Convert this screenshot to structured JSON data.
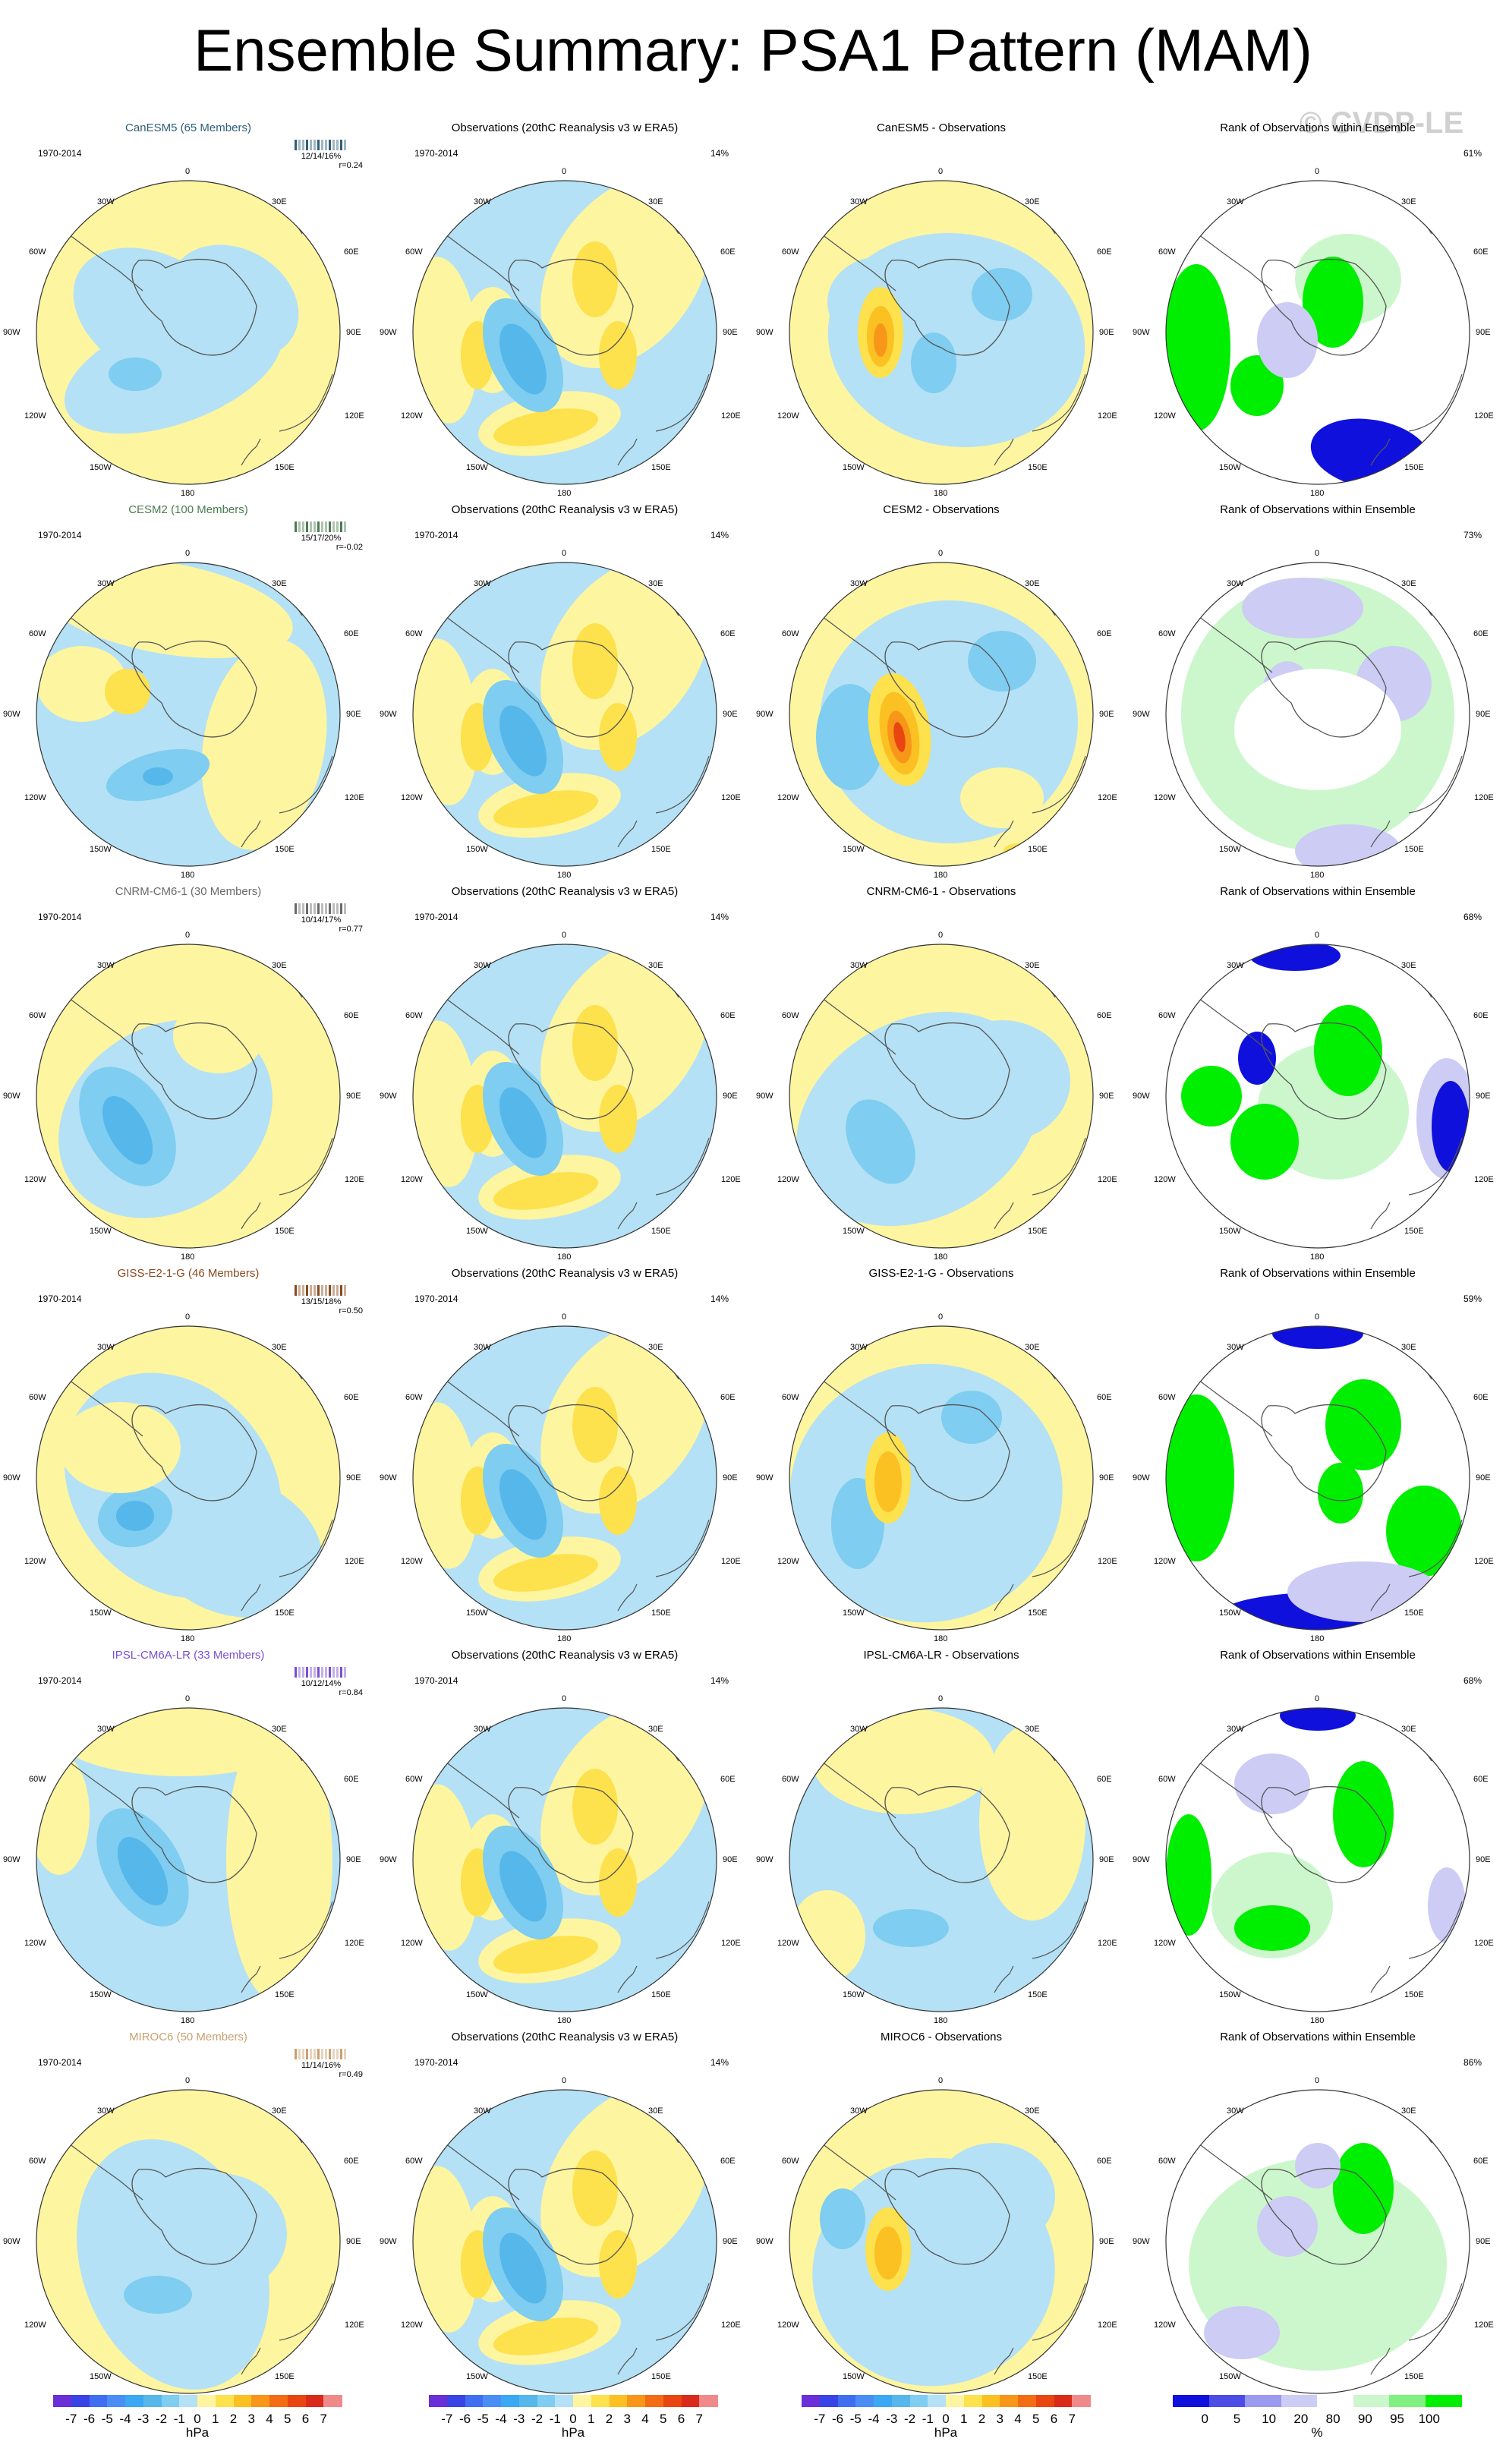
{
  "title": "Ensemble Summary: PSA1 Pattern (MAM)",
  "watermark": "© CVDP-LE",
  "grid_labels": {
    "top": "0",
    "bottom": "180",
    "left": "90W",
    "right": "90E",
    "tl1": "30W",
    "tl2": "60W",
    "tr1": "30E",
    "tr2": "60E",
    "bl1": "120W",
    "bl2": "150W",
    "br1": "120E",
    "br2": "150E"
  },
  "colors": {
    "blue3": "#56b7ea",
    "blue2": "#7fcdf0",
    "blue1": "#b4e1f5",
    "yellow1": "#fdf5a0",
    "yellow2": "#fde14d",
    "yellow3": "#fbc021",
    "orange": "#f79619",
    "red": "#e84510",
    "rank_green": "#00ee00",
    "rank_lgreen": "#ccf7cc",
    "rank_blue": "#1010dd",
    "rank_lblue": "#ccccf5"
  },
  "chart_data": {
    "type": "heatmap",
    "projection": "south polar stereographic",
    "rows": [
      {
        "model": "CanESM5 (65 Members)",
        "model_color": "#2e5f78",
        "period": "1970-2014",
        "stats": "12/14/16%",
        "r": "r=0.24",
        "obs_pct": "14%",
        "diff_title": "CanESM5 - Observations",
        "rank_pct": "61%"
      },
      {
        "model": "CESM2 (100 Members)",
        "model_color": "#4b7d50",
        "period": "1970-2014",
        "stats": "15/17/20%",
        "r": "r=-0.02",
        "obs_pct": "14%",
        "diff_title": "CESM2 - Observations",
        "rank_pct": "73%"
      },
      {
        "model": "CNRM-CM6-1 (30 Members)",
        "model_color": "#6a6a6a",
        "period": "1970-2014",
        "stats": "10/14/17%",
        "r": "r=0.77",
        "obs_pct": "14%",
        "diff_title": "CNRM-CM6-1 - Observations",
        "rank_pct": "68%"
      },
      {
        "model": "GISS-E2-1-G (46 Members)",
        "model_color": "#8a4a1e",
        "period": "1970-2014",
        "stats": "13/15/18%",
        "r": "r=0.50",
        "obs_pct": "14%",
        "diff_title": "GISS-E2-1-G - Observations",
        "rank_pct": "59%"
      },
      {
        "model": "IPSL-CM6A-LR (33 Members)",
        "model_color": "#7a4fd0",
        "period": "1970-2014",
        "stats": "10/12/14%",
        "r": "r=0.84",
        "obs_pct": "14%",
        "diff_title": "IPSL-CM6A-LR - Observations",
        "rank_pct": "68%"
      },
      {
        "model": "MIROC6 (50 Members)",
        "model_color": "#c9a070",
        "period": "1970-2014",
        "stats": "11/14/16%",
        "r": "r=0.49",
        "obs_pct": "14%",
        "diff_title": "MIROC6 - Observations",
        "rank_pct": "86%"
      }
    ],
    "obs_title": "Observations (20thC Reanalysis v3 w ERA5)",
    "rank_title": "Rank of Observations within Ensemble",
    "colorbar_hpa": {
      "unit": "hPa",
      "ticks": [
        "-7",
        "-6",
        "-5",
        "-4",
        "-3",
        "-2",
        "-1",
        "0",
        "1",
        "2",
        "3",
        "4",
        "5",
        "6",
        "7"
      ],
      "colors": [
        "#6a2fd6",
        "#3a44e6",
        "#3f6ff0",
        "#4a8ef5",
        "#3aa8f2",
        "#56b7ea",
        "#7fcdf0",
        "#b4e1f5",
        "#fdf5a0",
        "#fde14d",
        "#fbc021",
        "#f79619",
        "#f36c14",
        "#e84510",
        "#d92a1a",
        "#f08a8a"
      ]
    },
    "colorbar_rank": {
      "unit": "%",
      "ticks": [
        "0",
        "5",
        "10",
        "20",
        "80",
        "90",
        "95",
        "100"
      ],
      "colors": [
        "#1010dd",
        "#4d4de6",
        "#9a9af0",
        "#ccccf5",
        "#ffffff",
        "#ccf7cc",
        "#80f080",
        "#00ee00"
      ]
    }
  }
}
